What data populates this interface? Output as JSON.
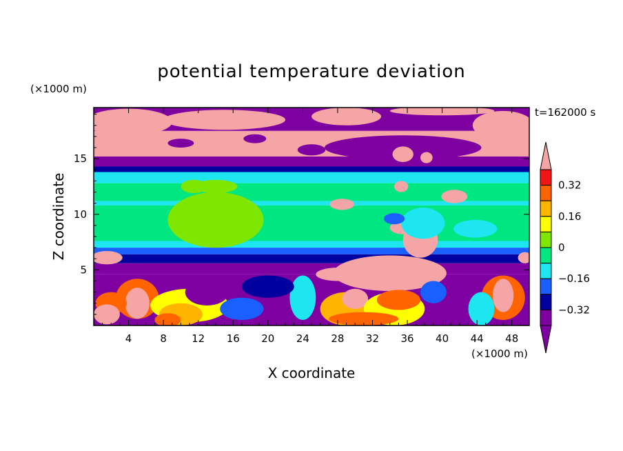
{
  "chart_data": {
    "type": "heatmap",
    "title": "potential temperature deviation",
    "xlabel": "X coordinate",
    "ylabel": "Z coordinate",
    "x_unit": "(×1000 m)",
    "y_unit": "(×1000 m)",
    "time_label": "t=162000 s",
    "xlim": [
      0,
      50
    ],
    "ylim": [
      0,
      19.6
    ],
    "x_ticks": [
      4,
      8,
      12,
      16,
      20,
      24,
      28,
      32,
      36,
      40,
      44,
      48
    ],
    "y_ticks": [
      5,
      10,
      15
    ],
    "colorbar": {
      "levels": [
        -0.4,
        -0.32,
        -0.24,
        -0.16,
        -0.08,
        0,
        0.08,
        0.16,
        0.24,
        0.32,
        0.4
      ],
      "labels": [
        -0.32,
        -0.16,
        0,
        0.16,
        0.32
      ],
      "label_text": [
        "−0.32",
        "−0.16",
        "0",
        "0.16",
        "0.32"
      ],
      "under_color": "#7f00a0",
      "over_color": "#f5a5a5",
      "colors": [
        "#7f00a0",
        "#00009e",
        "#1a5fff",
        "#1ee6f0",
        "#00e680",
        "#7fe600",
        "#ffff00",
        "#ffb400",
        "#ff6400",
        "#f01414"
      ]
    },
    "bands": [
      {
        "z_min": 17.5,
        "z_max": 19.6,
        "value": -0.45
      },
      {
        "z_min": 15.2,
        "z_max": 17.5,
        "value": 0.45
      },
      {
        "z_min": 14.3,
        "z_max": 15.2,
        "value": -0.45
      },
      {
        "z_min": 13.8,
        "z_max": 14.3,
        "value": -0.25
      },
      {
        "z_min": 12.8,
        "z_max": 13.8,
        "value": -0.1
      },
      {
        "z_min": 11.2,
        "z_max": 12.8,
        "value": -0.02
      },
      {
        "z_min": 10.8,
        "z_max": 11.2,
        "value": -0.1
      },
      {
        "z_min": 7.6,
        "z_max": 10.8,
        "value": -0.02
      },
      {
        "z_min": 7.0,
        "z_max": 7.6,
        "value": -0.1
      },
      {
        "z_min": 6.4,
        "z_max": 7.0,
        "value": -0.2
      },
      {
        "z_min": 5.6,
        "z_max": 6.4,
        "value": -0.3
      },
      {
        "z_min": 4.6,
        "z_max": 5.6,
        "value": -0.38
      },
      {
        "z_min": 0,
        "z_max": 4.6,
        "value": -0.45
      }
    ],
    "patches": [
      {
        "x": 14,
        "z": 9.5,
        "rx": 5.5,
        "rz": 2.5,
        "value": 0.04
      },
      {
        "x": 11.5,
        "z": 12.5,
        "rx": 1.5,
        "rz": 0.6,
        "value": 0.04
      },
      {
        "x": 14,
        "z": 12.5,
        "rx": 2.5,
        "rz": 0.6,
        "value": 0.04
      },
      {
        "x": 4,
        "z": 18.3,
        "rx": 5,
        "rz": 1.2,
        "value": 0.45
      },
      {
        "x": 15,
        "z": 18.5,
        "rx": 7,
        "rz": 0.9,
        "value": 0.45
      },
      {
        "x": 29,
        "z": 18.8,
        "rx": 4,
        "rz": 0.8,
        "value": 0.45
      },
      {
        "x": 47,
        "z": 18.0,
        "rx": 3.5,
        "rz": 1.3,
        "value": 0.45
      },
      {
        "x": 40,
        "z": 19.3,
        "rx": 6,
        "rz": 0.4,
        "value": 0.45
      },
      {
        "x": 25,
        "z": 15.8,
        "rx": 1.6,
        "rz": 0.5,
        "value": -0.45
      },
      {
        "x": 35.5,
        "z": 16.0,
        "rx": 9,
        "rz": 1.1,
        "value": -0.45
      },
      {
        "x": 10,
        "z": 16.4,
        "rx": 1.5,
        "rz": 0.4,
        "value": -0.45
      },
      {
        "x": 18.5,
        "z": 16.8,
        "rx": 1.3,
        "rz": 0.4,
        "value": -0.45
      },
      {
        "x": 35.5,
        "z": 15.4,
        "rx": 1.2,
        "rz": 0.7,
        "value": 0.45
      },
      {
        "x": 38.2,
        "z": 15.1,
        "rx": 0.7,
        "rz": 0.5,
        "value": 0.45
      },
      {
        "x": 41.4,
        "z": 11.6,
        "rx": 1.5,
        "rz": 0.6,
        "value": 0.45
      },
      {
        "x": 35.3,
        "z": 12.5,
        "rx": 0.8,
        "rz": 0.5,
        "value": 0.45
      },
      {
        "x": 28.5,
        "z": 10.9,
        "rx": 1.4,
        "rz": 0.5,
        "value": 0.45
      },
      {
        "x": 35.5,
        "z": 8.8,
        "rx": 1.5,
        "rz": 0.6,
        "value": 0.45
      },
      {
        "x": 37.5,
        "z": 7.7,
        "rx": 2,
        "rz": 1.6,
        "value": 0.45
      },
      {
        "x": 37.8,
        "z": 9.2,
        "rx": 2.5,
        "rz": 1.4,
        "value": -0.1
      },
      {
        "x": 43.8,
        "z": 8.7,
        "rx": 2.5,
        "rz": 0.8,
        "value": -0.1
      },
      {
        "x": 34.5,
        "z": 9.6,
        "rx": 1.2,
        "rz": 0.5,
        "value": -0.18
      },
      {
        "x": 1.5,
        "z": 6.1,
        "rx": 1.8,
        "rz": 0.6,
        "value": 0.45
      },
      {
        "x": 49.5,
        "z": 6.1,
        "rx": 0.8,
        "rz": 0.5,
        "value": 0.45
      },
      {
        "x": 34,
        "z": 4.7,
        "rx": 6.5,
        "rz": 1.6,
        "value": 0.45
      },
      {
        "x": 28,
        "z": 4.6,
        "rx": 2.5,
        "rz": 0.6,
        "value": 0.45
      },
      {
        "x": 5,
        "z": 2.4,
        "rx": 2.5,
        "rz": 1.8,
        "value": 0.3
      },
      {
        "x": 5,
        "z": 2.0,
        "rx": 1.4,
        "rz": 1.4,
        "value": 0.45
      },
      {
        "x": 2,
        "z": 2.0,
        "rx": 1.8,
        "rz": 1.0,
        "value": 0.25
      },
      {
        "x": 1.5,
        "z": 1.0,
        "rx": 1.5,
        "rz": 0.9,
        "value": 0.45
      },
      {
        "x": 11,
        "z": 1.8,
        "rx": 4.5,
        "rz": 1.5,
        "value": 0.08
      },
      {
        "x": 10,
        "z": 1.0,
        "rx": 2.5,
        "rz": 1.0,
        "value": 0.18
      },
      {
        "x": 8.5,
        "z": 0.5,
        "rx": 1.5,
        "rz": 0.6,
        "value": 0.3
      },
      {
        "x": 17,
        "z": 1.5,
        "rx": 2.5,
        "rz": 1.0,
        "value": -0.18
      },
      {
        "x": 24,
        "z": 2.5,
        "rx": 1.5,
        "rz": 2.0,
        "value": -0.1
      },
      {
        "x": 29,
        "z": 1.5,
        "rx": 3,
        "rz": 1.5,
        "value": 0.2
      },
      {
        "x": 30,
        "z": 2.4,
        "rx": 1.5,
        "rz": 0.9,
        "value": 0.45
      },
      {
        "x": 34.5,
        "z": 1.5,
        "rx": 3.5,
        "rz": 1.5,
        "value": 0.12
      },
      {
        "x": 35,
        "z": 2.3,
        "rx": 2.5,
        "rz": 0.9,
        "value": 0.26
      },
      {
        "x": 31,
        "z": 0.6,
        "rx": 4,
        "rz": 0.6,
        "value": 0.3
      },
      {
        "x": 39,
        "z": 3.0,
        "rx": 1.5,
        "rz": 1.0,
        "value": -0.2
      },
      {
        "x": 47,
        "z": 2.5,
        "rx": 2.5,
        "rz": 2.0,
        "value": 0.28
      },
      {
        "x": 47,
        "z": 2.7,
        "rx": 1.2,
        "rz": 1.5,
        "value": 0.45
      },
      {
        "x": 44.5,
        "z": 1.5,
        "rx": 1.5,
        "rz": 1.5,
        "value": -0.1
      },
      {
        "x": 20,
        "z": 3.5,
        "rx": 3,
        "rz": 1.0,
        "value": -0.3
      },
      {
        "x": 13,
        "z": 3.0,
        "rx": 2.5,
        "rz": 1.2,
        "value": -0.45
      }
    ]
  }
}
